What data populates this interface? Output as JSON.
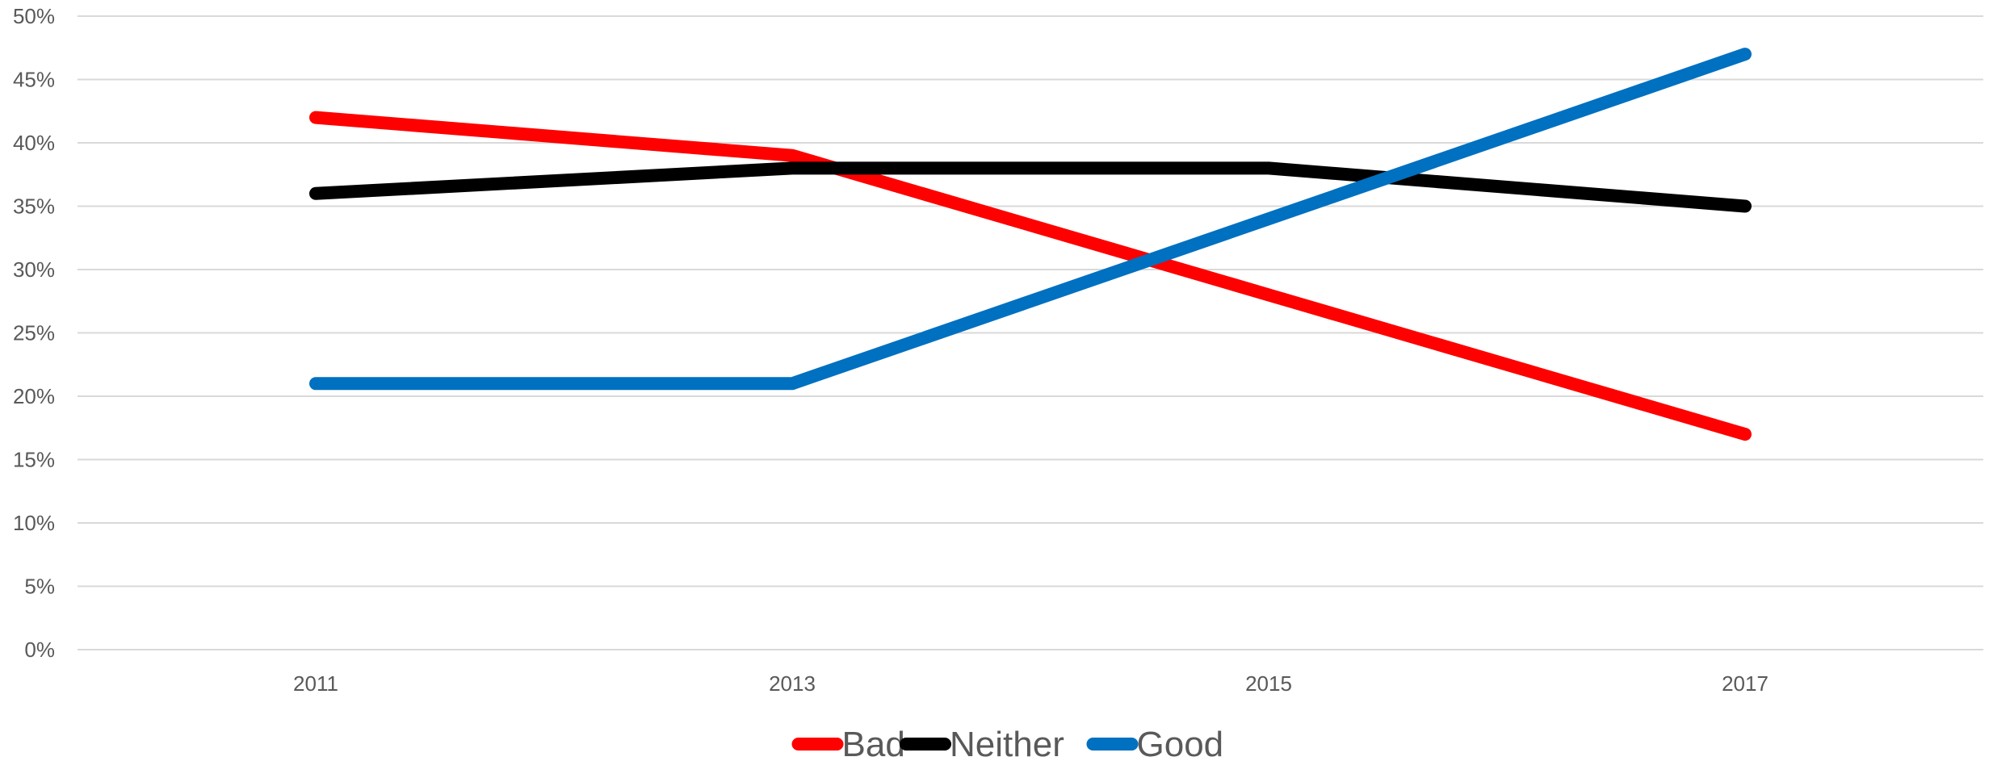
{
  "chart_data": {
    "type": "line",
    "categories": [
      "2011",
      "2013",
      "2015",
      "2017"
    ],
    "series": [
      {
        "name": "Bad",
        "values": [
          42,
          39,
          28,
          17
        ],
        "color": "#ff0000"
      },
      {
        "name": "Neither",
        "values": [
          36,
          38,
          38,
          35
        ],
        "color": "#000000"
      },
      {
        "name": "Good",
        "values": [
          21,
          21,
          34,
          47
        ],
        "color": "#0070c0"
      }
    ],
    "ylim": [
      0,
      50
    ],
    "yticks": [
      0,
      5,
      10,
      15,
      20,
      25,
      30,
      35,
      40,
      45,
      50
    ],
    "ytick_format": "percent",
    "grid": true,
    "legend_position": "bottom",
    "title": "",
    "xlabel": "",
    "ylabel": ""
  }
}
